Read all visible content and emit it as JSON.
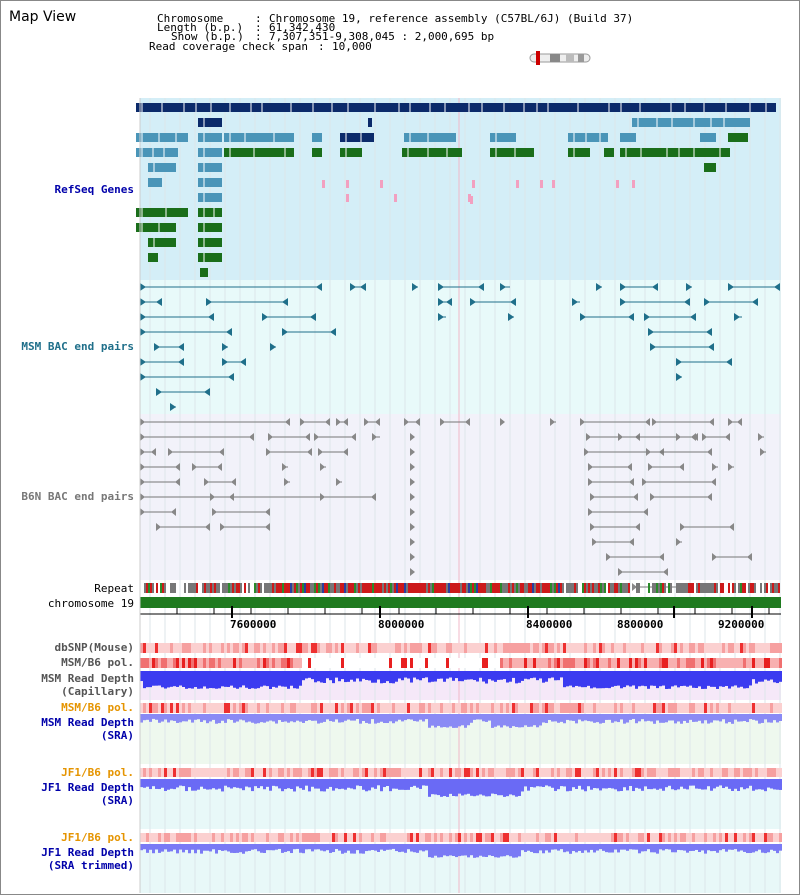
{
  "view": {
    "title": "Map View"
  },
  "header": {
    "chromosome_key": "Chromosome",
    "chromosome_value": "Chromosome 19, reference assembly (C57BL/6J) (Build 37)",
    "length_key": "Length (b.p.)",
    "length_value": "61,342,430",
    "show_key": "Show (b.p.)",
    "show_value": "7,307,351-9,308,045 : 2,000,695 bp",
    "coverage_key": "Read coverage check span",
    "coverage_value": "10,000"
  },
  "tracks": {
    "refseq": "RefSeq Genes",
    "msm_bac": "MSM BAC end pairs",
    "b6n_bac": "B6N BAC end pairs",
    "repeat": "Repeat",
    "chromosome": "chromosome 19",
    "dbsnp": "dbSNP(Mouse)",
    "msm_b6_pol_1": "MSM/B6 pol.",
    "msm_depth_cap_1": "MSM Read Depth",
    "msm_depth_cap_2": "(Capillary)",
    "msm_b6_pol_2": "MSM/B6 pol.",
    "msm_depth_sra_1": "MSM Read Depth",
    "msm_depth_sra_2": "(SRA)",
    "jf1_b6_pol_1": "JF1/B6 pol.",
    "jf1_depth_sra_1": "JF1 Read Depth",
    "jf1_depth_sra_2": "(SRA)",
    "jf1_b6_pol_2": "JF1/B6 pol.",
    "jf1_depth_trim_1": "JF1 Read Depth",
    "jf1_depth_trim_2": "(SRA trimmed)"
  },
  "axis": {
    "ticks": [
      "7600000",
      "8000000",
      "8400000",
      "8800000",
      "9200000"
    ]
  },
  "colors": {
    "refseq_bg": "#d4eef7",
    "msm_bac_bg": "#e8fafa",
    "b6n_bg": "#f2f2fa",
    "gene_navy": "#0b2a6a",
    "gene_blue": "#4a95b8",
    "gene_green": "#1a6e1a",
    "gene_pink": "#f2a0c0",
    "bac_teal": "#1f6f8a",
    "bac_gray": "#888888",
    "chrom_green": "#1f7a1f",
    "depth_blue": "#3b3bf0",
    "label_navy": "#0000aa",
    "label_teal": "#1f6f8a",
    "label_orange": "#e59400"
  }
}
